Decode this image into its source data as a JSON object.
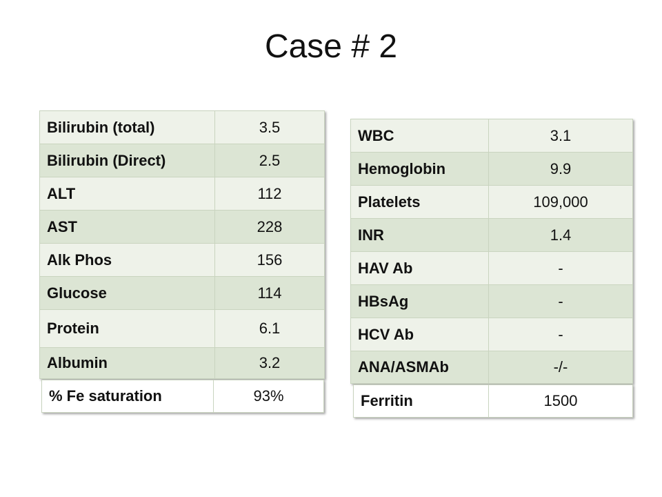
{
  "title": "Case # 2",
  "left_table": {
    "rows": [
      [
        "Bilirubin (total)",
        "3.5"
      ],
      [
        "Bilirubin (Direct)",
        "2.5"
      ],
      [
        "ALT",
        "112"
      ],
      [
        "AST",
        "228"
      ],
      [
        "Alk Phos",
        "156"
      ],
      [
        "Glucose",
        "114"
      ],
      [
        "Protein",
        "6.1"
      ],
      [
        "Albumin",
        "3.2"
      ]
    ]
  },
  "left_extra": {
    "rows": [
      [
        "% Fe saturation",
        "93%"
      ]
    ]
  },
  "right_table": {
    "rows": [
      [
        "WBC",
        "3.1"
      ],
      [
        "Hemoglobin",
        "9.9"
      ],
      [
        "Platelets",
        "109,000"
      ],
      [
        "INR",
        "1.4"
      ],
      [
        "HAV Ab",
        "-"
      ],
      [
        "HBsAg",
        "-"
      ],
      [
        "HCV Ab",
        "-"
      ],
      [
        "ANA/ASMAb",
        "-/-"
      ]
    ]
  },
  "right_extra": {
    "rows": [
      [
        "Ferritin",
        "1500"
      ]
    ]
  }
}
